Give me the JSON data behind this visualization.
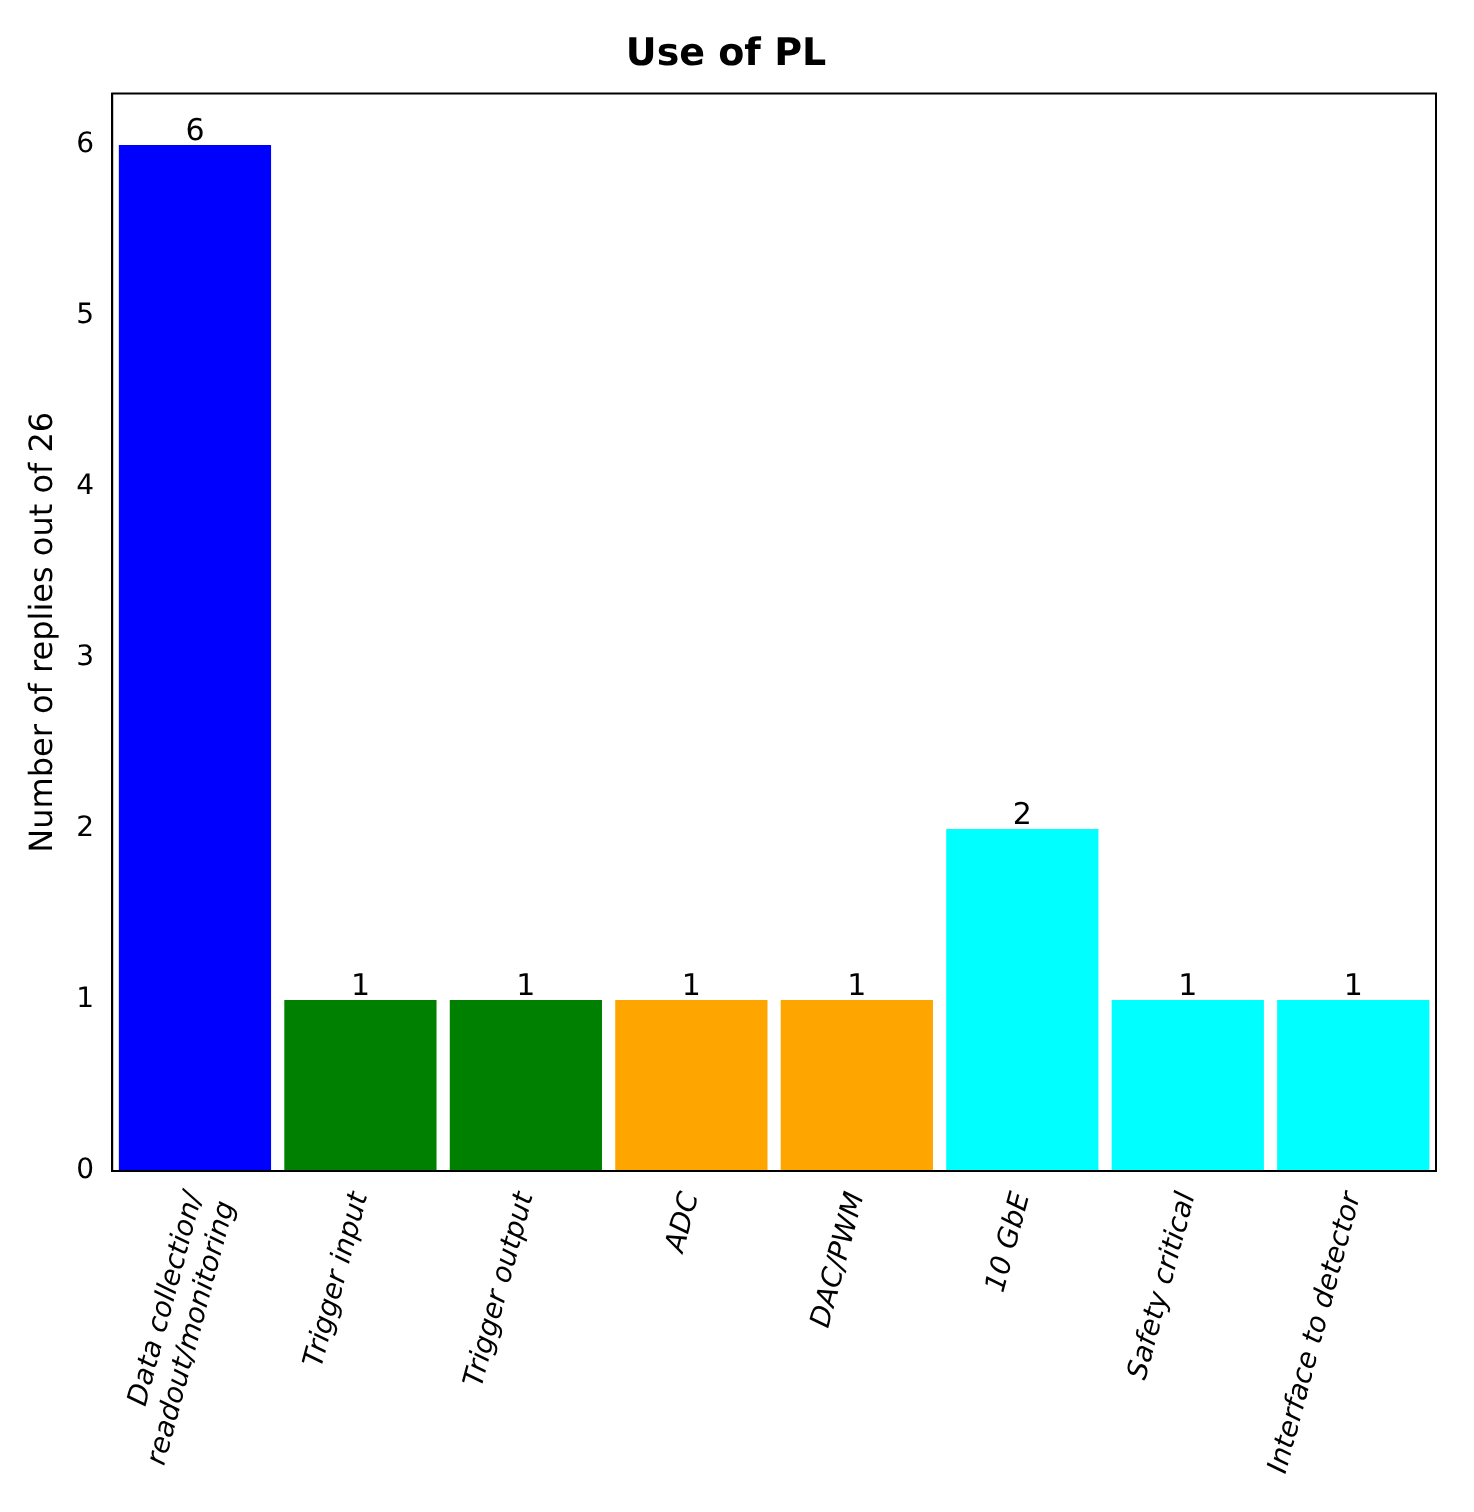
{
  "chart_data": {
    "type": "bar",
    "title": "Use of PL",
    "ylabel": "Number of replies out of 26",
    "categories": [
      "Data collection/\nreadout/monitoring",
      "Trigger input",
      "Trigger output",
      "ADC",
      "DAC/PWM",
      "10 GbE",
      "Safety critical",
      "Interface to detector"
    ],
    "values": [
      6,
      1,
      1,
      1,
      1,
      2,
      1,
      1
    ],
    "colors": [
      "#0000ff",
      "#008000",
      "#008000",
      "#ffa500",
      "#ffa500",
      "#00ffff",
      "#00ffff",
      "#00ffff"
    ],
    "ylim": [
      0,
      6.3
    ],
    "yticks": [
      0,
      1,
      2,
      3,
      4,
      5,
      6
    ],
    "data_labels": true,
    "grid": false,
    "legend": false
  }
}
